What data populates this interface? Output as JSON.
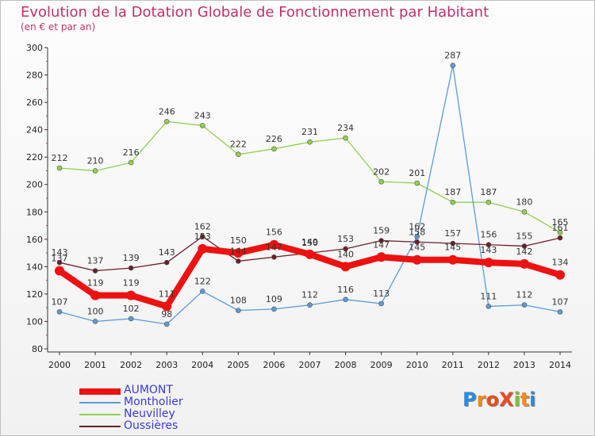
{
  "title": "Evolution de la Dotation Globale de Fonctionnement par Habitant",
  "subtitle": "(en € et par an)",
  "logo": {
    "text": "ProXiti",
    "colors": [
      "#2a8be0",
      "#f28c1b",
      "#e84d20",
      "#e84d20",
      "#7cc242",
      "#f28c1b",
      "#2a8be0"
    ]
  },
  "chart_data": {
    "type": "line",
    "title": "Evolution de la Dotation Globale de Fonctionnement par Habitant",
    "subtitle": "(en € et par an)",
    "x": [
      "2000",
      "2001",
      "2002",
      "2003",
      "2004",
      "2005",
      "2006",
      "2007",
      "2008",
      "2009",
      "2010",
      "2011",
      "2012",
      "2013",
      "2014"
    ],
    "ylim": [
      80,
      300
    ],
    "yticks": [
      80,
      100,
      120,
      140,
      160,
      180,
      200,
      220,
      240,
      260,
      280,
      300
    ],
    "grid": false,
    "legend_position": "bottom-left",
    "series": [
      {
        "name": "AUMONT",
        "color": "#ee1111",
        "emphasis": true,
        "values": [
          137,
          119,
          119,
          111,
          153,
          150,
          156,
          149,
          140,
          147,
          145,
          145,
          143,
          142,
          134
        ],
        "labels": [
          "137",
          "119",
          "119",
          "111",
          "153",
          "150",
          "156",
          "149",
          "140",
          "147",
          "145",
          "145",
          "143",
          "142",
          "134"
        ]
      },
      {
        "name": "Montholier",
        "color": "#5b9bd5",
        "values": [
          107,
          100,
          102,
          98,
          122,
          108,
          109,
          112,
          116,
          113,
          162,
          287,
          111,
          112,
          107
        ],
        "labels": [
          "107",
          "100",
          "102",
          "98",
          "122",
          "108",
          "109",
          "112",
          "116",
          "113",
          "162",
          "287",
          "111",
          "112",
          "107"
        ]
      },
      {
        "name": "Neuvilley",
        "color": "#8fd14f",
        "values": [
          212,
          210,
          216,
          246,
          243,
          222,
          226,
          231,
          234,
          202,
          201,
          187,
          187,
          180,
          165
        ],
        "labels": [
          "212",
          "210",
          "216",
          "246",
          "243",
          "222",
          "226",
          "231",
          "234",
          "202",
          "201",
          "187",
          "187",
          "180",
          "165"
        ]
      },
      {
        "name": "Oussières",
        "color": "#6b1f2a",
        "values": [
          143,
          137,
          139,
          143,
          162,
          144,
          147,
          150,
          153,
          159,
          158,
          157,
          156,
          155,
          161
        ],
        "labels": [
          "143",
          "137",
          "139",
          "143",
          "162",
          "144",
          "147",
          "150",
          "153",
          "159",
          "158",
          "157",
          "156",
          "155",
          "161"
        ]
      }
    ]
  }
}
